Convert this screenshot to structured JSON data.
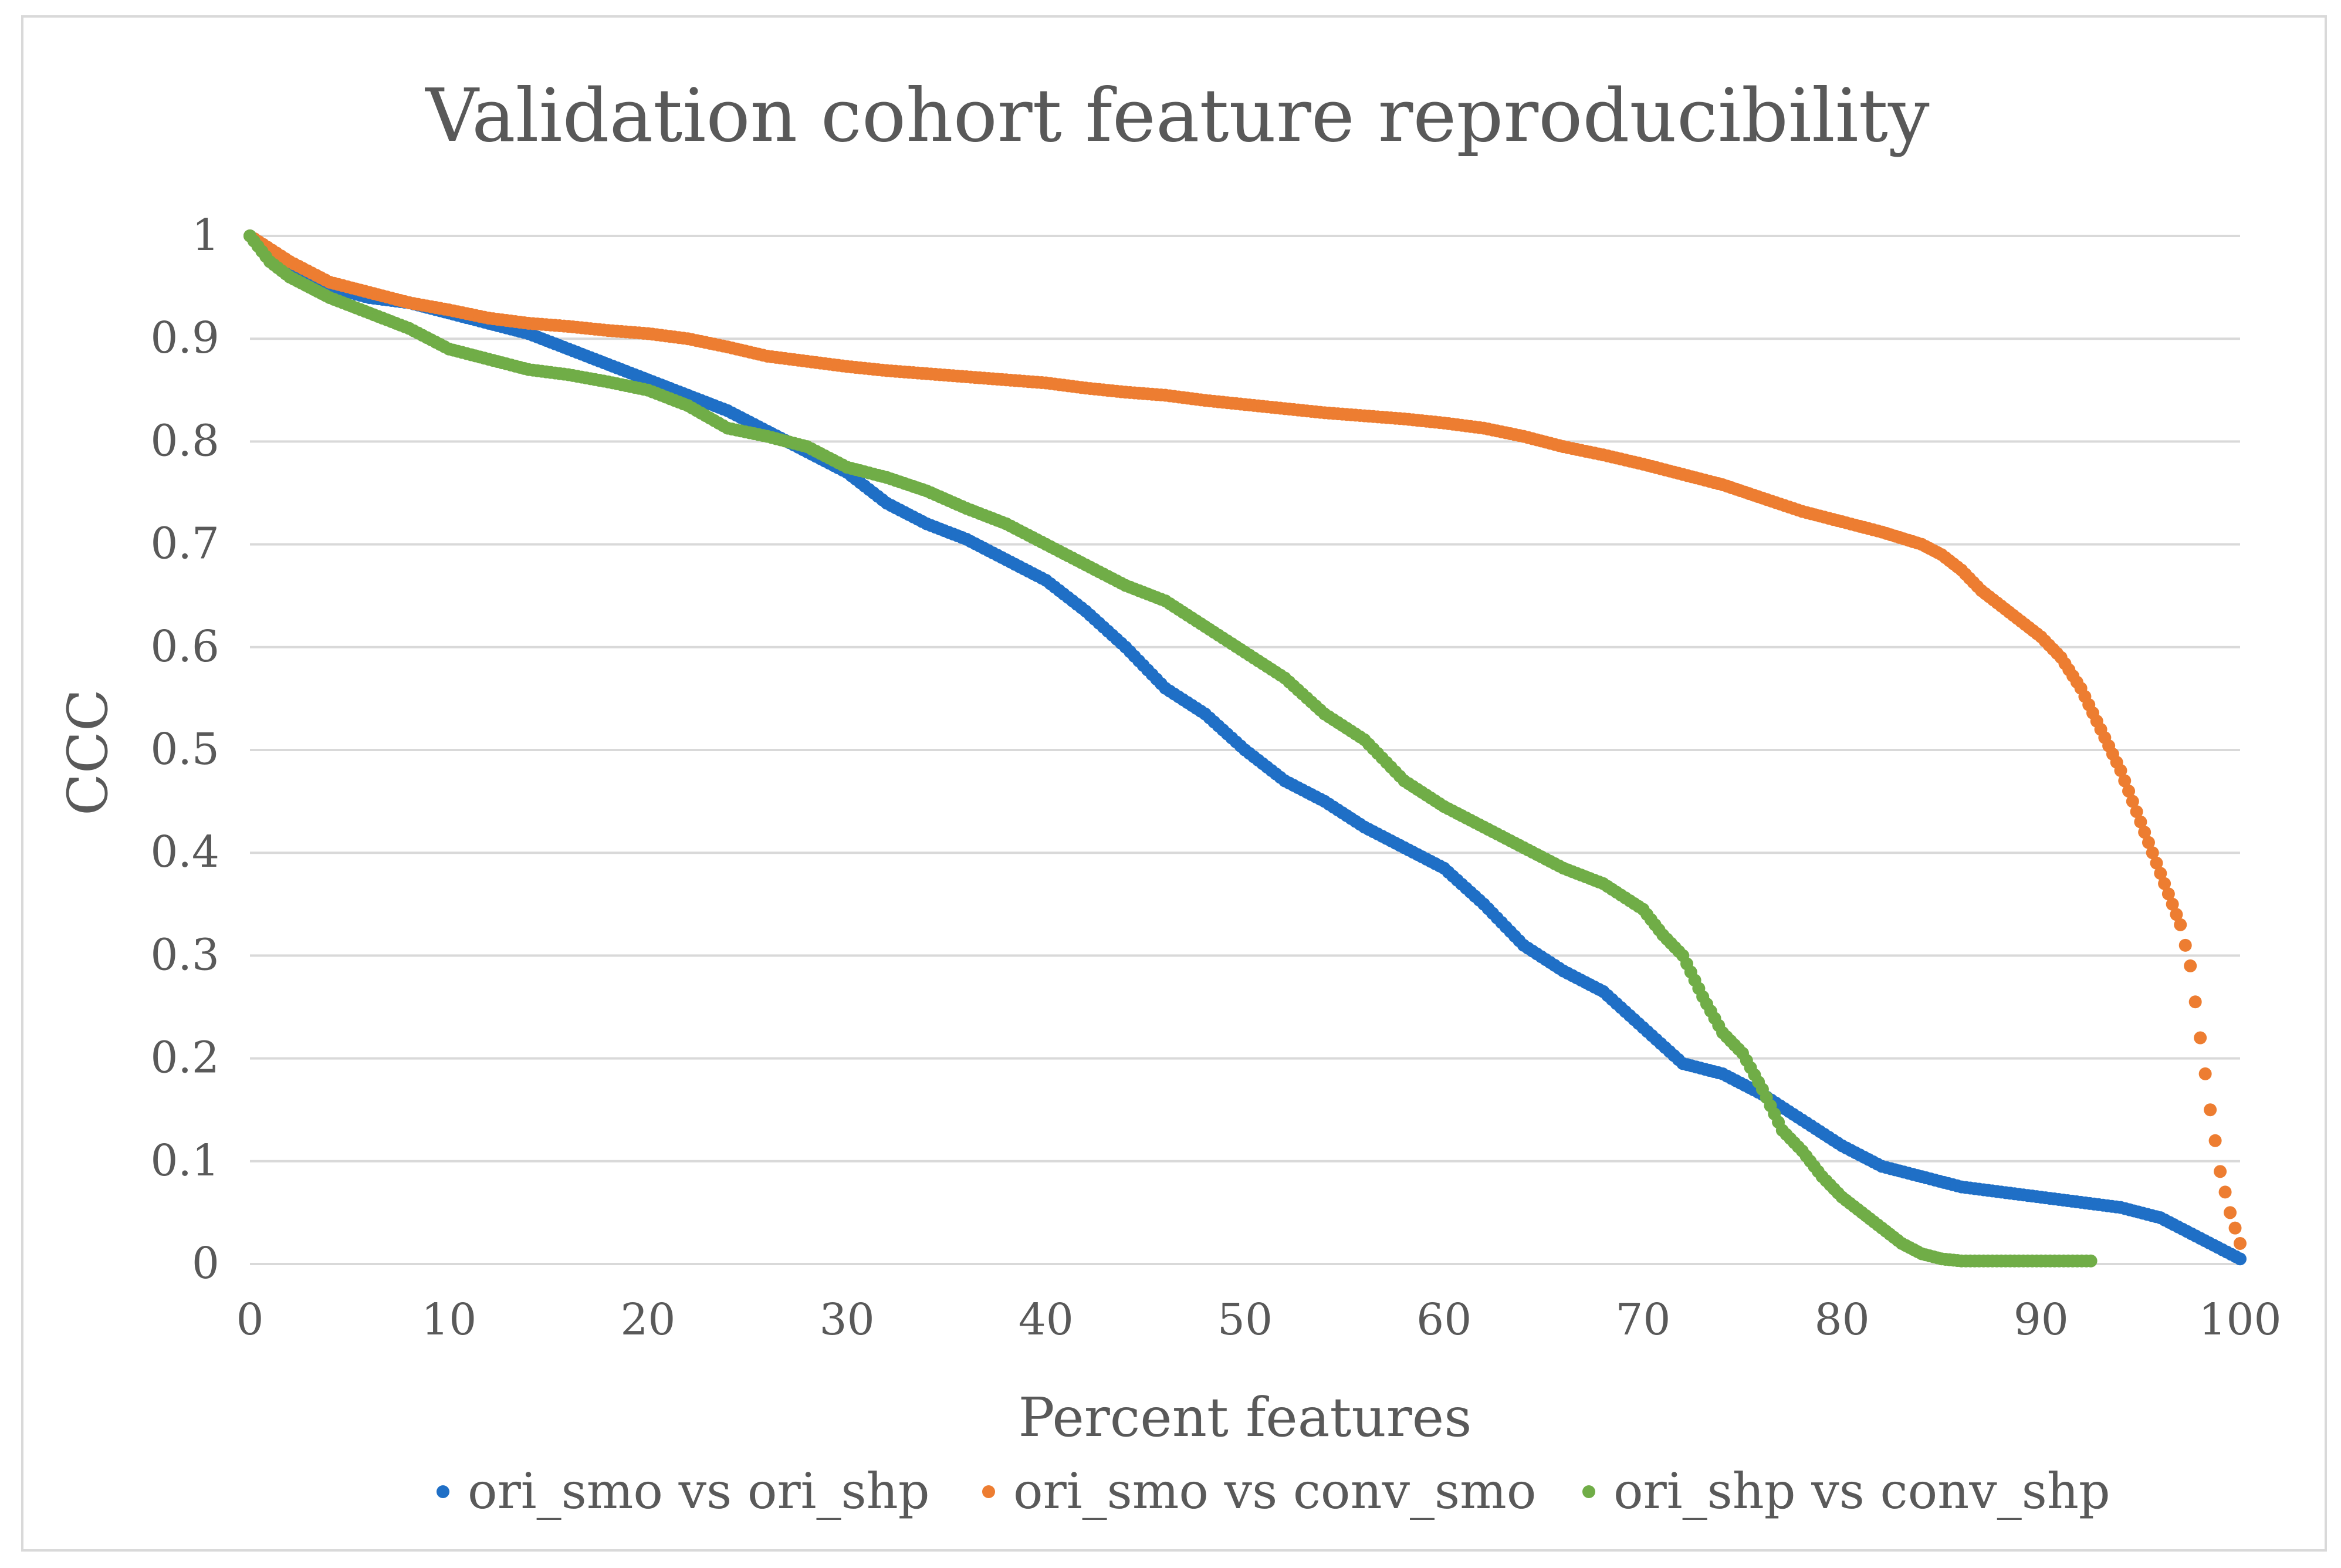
{
  "chart_data": {
    "type": "scatter",
    "title": "Validation cohort feature reproducibility",
    "xlabel": "Percent features",
    "ylabel": "CCC",
    "xlim": [
      0,
      100
    ],
    "ylim": [
      0,
      1
    ],
    "xticks": [
      "0",
      "10",
      "20",
      "30",
      "40",
      "50",
      "60",
      "70",
      "80",
      "90",
      "100"
    ],
    "yticks": [
      "0",
      "0.1",
      "0.2",
      "0.3",
      "0.4",
      "0.5",
      "0.6",
      "0.7",
      "0.8",
      "0.9",
      "1"
    ],
    "grid": true,
    "legend_position": "bottom",
    "series": [
      {
        "name": "ori_smo vs ori_shp",
        "color": "#1f6fc6",
        "x": [
          0,
          2,
          4,
          6,
          8,
          10,
          12,
          14,
          16,
          18,
          20,
          22,
          24,
          26,
          28,
          30,
          32,
          34,
          36,
          38,
          40,
          42,
          44,
          46,
          48,
          50,
          52,
          54,
          56,
          58,
          60,
          62,
          64,
          66,
          68,
          70,
          72,
          74,
          76,
          78,
          80,
          82,
          84,
          86,
          88,
          90,
          92,
          94,
          96,
          98,
          100
        ],
        "y": [
          1.0,
          0.97,
          0.95,
          0.94,
          0.935,
          0.925,
          0.915,
          0.905,
          0.89,
          0.875,
          0.86,
          0.845,
          0.83,
          0.81,
          0.79,
          0.77,
          0.74,
          0.72,
          0.705,
          0.685,
          0.665,
          0.635,
          0.6,
          0.56,
          0.535,
          0.5,
          0.47,
          0.45,
          0.425,
          0.405,
          0.385,
          0.35,
          0.31,
          0.285,
          0.265,
          0.23,
          0.195,
          0.185,
          0.165,
          0.14,
          0.115,
          0.095,
          0.085,
          0.075,
          0.07,
          0.065,
          0.06,
          0.055,
          0.045,
          0.025,
          0.005
        ]
      },
      {
        "name": "ori_smo vs conv_smo",
        "color": "#ed7d31",
        "x": [
          0,
          2,
          4,
          6,
          8,
          10,
          12,
          14,
          16,
          18,
          20,
          22,
          24,
          26,
          28,
          30,
          32,
          34,
          36,
          38,
          40,
          42,
          44,
          46,
          48,
          50,
          52,
          54,
          56,
          58,
          60,
          62,
          64,
          66,
          68,
          70,
          72,
          74,
          76,
          78,
          80,
          82,
          84,
          85,
          86,
          87,
          88,
          89,
          90,
          91,
          92,
          93,
          94,
          95,
          96,
          97,
          97.5,
          98,
          98.5,
          99,
          99.5,
          100
        ],
        "y": [
          1.0,
          0.975,
          0.955,
          0.945,
          0.935,
          0.928,
          0.92,
          0.915,
          0.912,
          0.908,
          0.905,
          0.9,
          0.892,
          0.883,
          0.878,
          0.873,
          0.869,
          0.866,
          0.863,
          0.86,
          0.857,
          0.852,
          0.848,
          0.845,
          0.84,
          0.836,
          0.832,
          0.828,
          0.825,
          0.822,
          0.818,
          0.813,
          0.805,
          0.795,
          0.787,
          0.778,
          0.768,
          0.758,
          0.745,
          0.732,
          0.722,
          0.712,
          0.7,
          0.69,
          0.675,
          0.655,
          0.64,
          0.625,
          0.61,
          0.59,
          0.56,
          0.52,
          0.48,
          0.43,
          0.38,
          0.33,
          0.29,
          0.22,
          0.15,
          0.09,
          0.05,
          0.02
        ]
      },
      {
        "name": "ori_shp vs conv_shp",
        "color": "#70ad47",
        "x": [
          0,
          1,
          2,
          3,
          4,
          6,
          8,
          10,
          12,
          14,
          16,
          18,
          20,
          22,
          24,
          26,
          28,
          30,
          32,
          34,
          36,
          38,
          40,
          42,
          44,
          46,
          48,
          50,
          52,
          54,
          56,
          58,
          60,
          62,
          64,
          66,
          68,
          70,
          71,
          72,
          73,
          74,
          75,
          76,
          77,
          78,
          79,
          80,
          81,
          82,
          83,
          84,
          85,
          86,
          88,
          90,
          92.5
        ],
        "y": [
          1.0,
          0.975,
          0.96,
          0.95,
          0.94,
          0.925,
          0.91,
          0.89,
          0.88,
          0.87,
          0.865,
          0.858,
          0.85,
          0.835,
          0.813,
          0.805,
          0.795,
          0.775,
          0.765,
          0.752,
          0.735,
          0.72,
          0.7,
          0.68,
          0.66,
          0.645,
          0.62,
          0.595,
          0.57,
          0.535,
          0.51,
          0.47,
          0.445,
          0.425,
          0.405,
          0.385,
          0.37,
          0.345,
          0.32,
          0.3,
          0.26,
          0.225,
          0.205,
          0.17,
          0.13,
          0.11,
          0.085,
          0.065,
          0.05,
          0.035,
          0.02,
          0.01,
          0.005,
          0.003,
          0.003,
          0.003,
          0.003
        ]
      }
    ]
  }
}
